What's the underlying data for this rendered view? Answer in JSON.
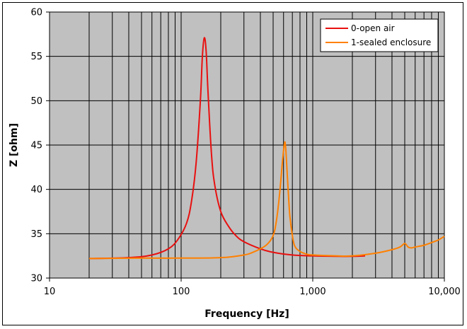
{
  "chart_data": {
    "type": "line",
    "title": "",
    "xlabel": "Frequency [Hz]",
    "ylabel": "Z [ohm]",
    "x_scale": "log",
    "xlim": [
      10,
      10000
    ],
    "ylim": [
      30,
      60
    ],
    "grid": true,
    "legend_position": "top-right",
    "plot_background": "#c0c0c0",
    "x_tick_labels": [
      {
        "value": 10,
        "label": "10"
      },
      {
        "value": 100,
        "label": "100"
      },
      {
        "value": 1000,
        "label": "1,000"
      },
      {
        "value": 10000,
        "label": "10,000"
      }
    ],
    "y_tick_labels": [
      {
        "value": 30,
        "label": "30"
      },
      {
        "value": 35,
        "label": "35"
      },
      {
        "value": 40,
        "label": "40"
      },
      {
        "value": 45,
        "label": "45"
      },
      {
        "value": 50,
        "label": "50"
      },
      {
        "value": 55,
        "label": "55"
      },
      {
        "value": 60,
        "label": "60"
      }
    ],
    "series": [
      {
        "name": "0-open air",
        "color": "#e81010",
        "x": [
          20,
          40,
          60,
          80,
          95,
          110,
          120,
          130,
          140,
          145,
          150,
          155,
          160,
          170,
          180,
          200,
          230,
          260,
          300,
          400,
          500,
          700,
          1000,
          1500,
          2000,
          2500
        ],
        "y": [
          32.2,
          32.3,
          32.6,
          33.3,
          34.4,
          36.2,
          38.7,
          43.0,
          50.0,
          55.0,
          57.1,
          55.5,
          51.0,
          44.0,
          40.5,
          37.5,
          35.8,
          34.8,
          34.1,
          33.3,
          32.9,
          32.6,
          32.5,
          32.45,
          32.45,
          32.5
        ]
      },
      {
        "name": "1-sealed enclosure",
        "color": "#ff8000",
        "x": [
          20,
          50,
          100,
          200,
          300,
          350,
          400,
          450,
          500,
          530,
          560,
          590,
          610,
          620,
          630,
          650,
          670,
          700,
          730,
          800,
          900,
          1000,
          1500,
          2000,
          3000,
          4000,
          4600,
          5000,
          5300,
          5600,
          6000,
          7000,
          8000,
          9000,
          10000
        ],
        "y": [
          32.2,
          32.25,
          32.25,
          32.3,
          32.6,
          32.9,
          33.3,
          33.8,
          34.8,
          36.5,
          39.5,
          43.3,
          45.2,
          45.0,
          43.5,
          40.0,
          37.0,
          34.8,
          33.6,
          33.0,
          32.7,
          32.6,
          32.5,
          32.5,
          32.8,
          33.2,
          33.5,
          33.9,
          33.5,
          33.4,
          33.5,
          33.7,
          34.0,
          34.3,
          34.7
        ]
      }
    ]
  }
}
